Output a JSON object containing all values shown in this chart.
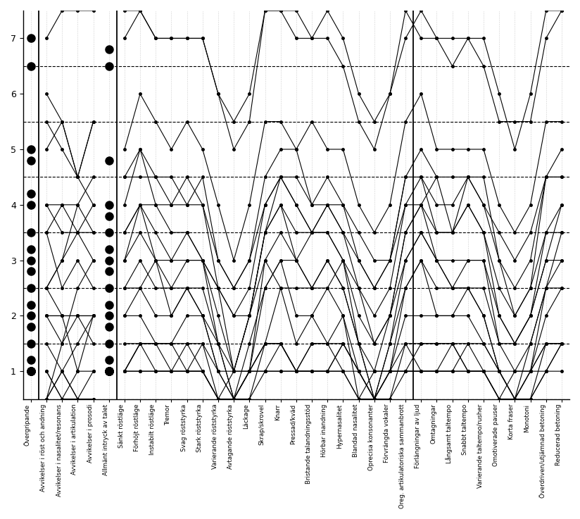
{
  "categories": [
    "Övergripande",
    "Avvikelser i röst och andning",
    "Avvikelser i nasalitet/resonans",
    "Avvikelser i artikulation",
    "Avvikelser i prosodi",
    "Allmänt intryck av talet",
    "Sänkt röstläge",
    "Förhöjt röstläge",
    "Instabilt röstläge",
    "Tremor",
    "Svag röststyrka",
    "Stark röststyrka",
    "Varierande röststyrka",
    "Avtagande röststyrka",
    "Läckage",
    "Skrap/skrovel",
    "Knarr",
    "Pressad/kväd",
    "Bristande talandningsstöd",
    "Hörbar inandning",
    "Hypernasalitet",
    "Blandad nasalitet",
    "Oprecisa konsonanter",
    "Förvrängda vokaler",
    "Oreg. artikulatoriska sammanbrott",
    "Förlängningar av ljud",
    "Omtagningar",
    "Långsamt taltempo",
    "Snabbt taltempo",
    "Varierande taltempo/rusher",
    "Omotiverade pauser",
    "Korta fraser",
    "Monotoni",
    "Överdriven/utjämnad betoning",
    "Reducerad betoning"
  ],
  "n_files": 20,
  "ylim": [
    0.5,
    7.5
  ],
  "yticks": [
    1,
    2,
    3,
    4,
    5,
    6,
    7
  ],
  "dashed_lines_y": [
    0.5,
    1.5,
    2.5,
    3.5,
    4.5,
    5.5,
    6.5
  ],
  "vline_positions": [
    0.5,
    5.5,
    24.5
  ],
  "figsize": [
    8.24,
    7.37
  ],
  "dpi": 100,
  "background_color": "#ffffff"
}
